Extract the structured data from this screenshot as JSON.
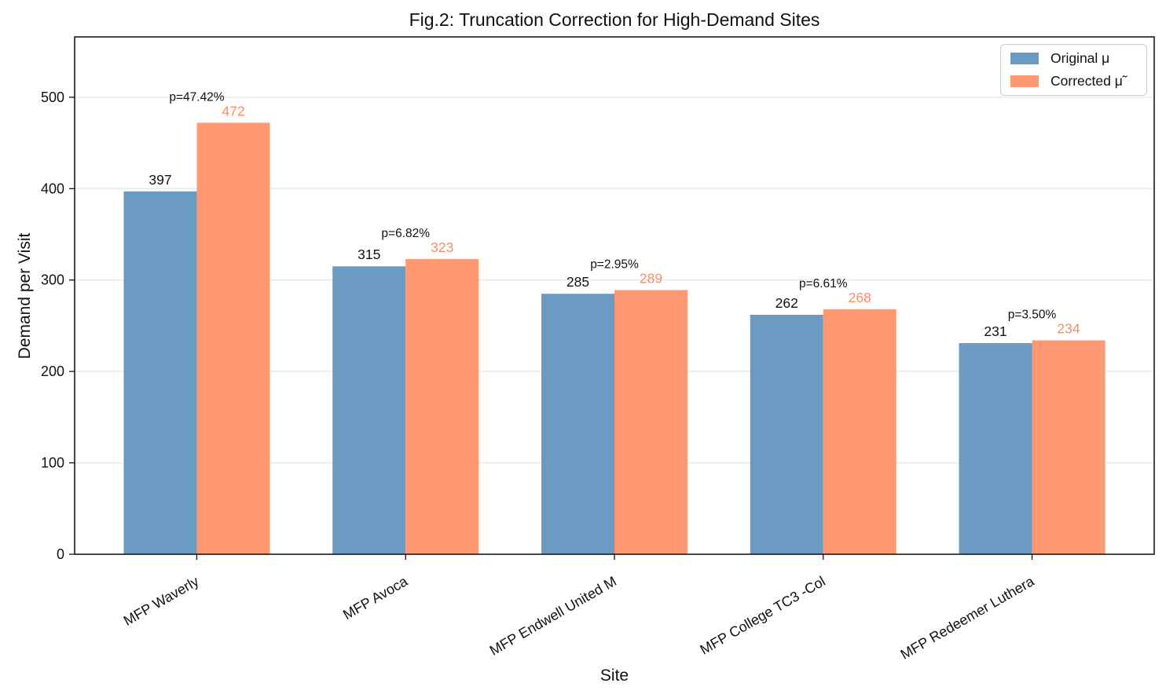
{
  "figure": {
    "title": "Fig.2: Truncation Correction for High-Demand Sites",
    "xlabel": "Site",
    "ylabel": "Demand per Visit"
  },
  "chart_data": {
    "type": "bar",
    "title": "Fig.2: Truncation Correction for High-Demand Sites",
    "xlabel": "Site",
    "ylabel": "Demand per Visit",
    "categories": [
      "MFP Waverly",
      "MFP Avoca",
      "MFP Endwell United M",
      "MFP College TC3 -Col",
      "MFP Redeemer Luthera"
    ],
    "series": [
      {
        "name": "Original μ",
        "color": "#6B9BC3",
        "label_color": "#111111",
        "values": [
          397,
          315,
          285,
          262,
          231
        ]
      },
      {
        "name": "Corrected μ̃",
        "color": "#FF9973",
        "label_color": "#FF8A65",
        "values": [
          472,
          323,
          289,
          268,
          234
        ]
      }
    ],
    "annotations": [
      "p=47.42%",
      "p=6.82%",
      "p=2.95%",
      "p=6.61%",
      "p=3.50%"
    ],
    "yticks": [
      0,
      100,
      200,
      300,
      400,
      500
    ],
    "ylim": [
      0,
      566
    ],
    "grid": "horizontal-only",
    "grid_color": "#e6e6e6",
    "legend_position": "upper right"
  }
}
